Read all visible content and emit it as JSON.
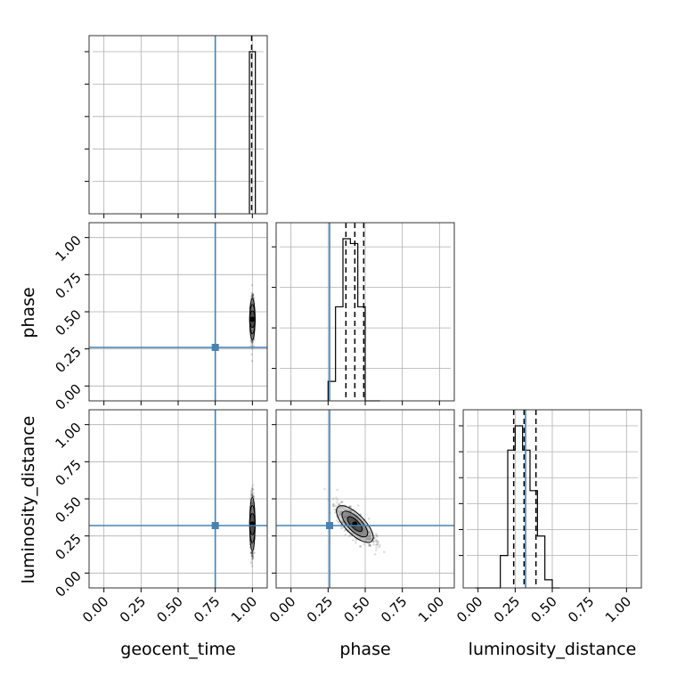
{
  "chart_data": {
    "type": "corner",
    "parameters": [
      "geocent_time",
      "phase",
      "luminosity_distance"
    ],
    "axis_range": [
      -0.1,
      1.1
    ],
    "ticks": [
      0.0,
      0.25,
      0.5,
      0.75,
      1.0
    ],
    "tick_labels": [
      "0.00",
      "0.25",
      "0.50",
      "0.75",
      "1.00"
    ],
    "axis_labels": {
      "geocent_time": "geocent_time",
      "phase": "phase",
      "luminosity_distance": "luminosity_distance"
    },
    "truths": {
      "geocent_time": 0.75,
      "phase": 0.26,
      "luminosity_distance": 0.32
    },
    "truth_color": "#4682b4",
    "grid": true,
    "histograms": {
      "geocent_time": {
        "bins": [
          [
            0.98,
            1.02
          ]
        ],
        "counts": [
          1.0
        ],
        "quantiles": [
          0.995
        ],
        "yticks": [
          0.2,
          0.4,
          0.6,
          0.8,
          1.0
        ]
      },
      "phase": {
        "bins": [
          [
            0.25,
            0.3
          ],
          [
            0.3,
            0.35
          ],
          [
            0.35,
            0.4
          ],
          [
            0.4,
            0.45
          ],
          [
            0.45,
            0.5
          ],
          [
            0.5,
            0.55
          ],
          [
            0.55,
            0.6
          ]
        ],
        "counts": [
          0.12,
          0.58,
          1.0,
          0.97,
          0.58,
          0.0,
          0.0
        ],
        "quantiles": [
          0.37,
          0.43,
          0.49
        ],
        "yticks": [
          0.2,
          0.45,
          0.7,
          0.95
        ]
      },
      "luminosity_distance": {
        "bins": [
          [
            0.15,
            0.2
          ],
          [
            0.2,
            0.25
          ],
          [
            0.25,
            0.3
          ],
          [
            0.3,
            0.35
          ],
          [
            0.35,
            0.4
          ],
          [
            0.4,
            0.45
          ],
          [
            0.45,
            0.5
          ],
          [
            0.5,
            0.55
          ]
        ],
        "counts": [
          0.2,
          0.85,
          1.0,
          0.85,
          0.6,
          0.32,
          0.05,
          0.0
        ],
        "quantiles": [
          0.24,
          0.31,
          0.39
        ],
        "yticks": [
          0.2,
          0.36,
          0.52,
          0.68,
          0.84,
          1.0
        ]
      }
    },
    "scatter_2d": [
      {
        "x": "geocent_time",
        "y": "phase",
        "center": [
          1.0,
          0.45
        ],
        "spread": [
          0.005,
          0.07
        ]
      },
      {
        "x": "geocent_time",
        "y": "luminosity_distance",
        "center": [
          1.0,
          0.33
        ],
        "spread": [
          0.005,
          0.09
        ]
      },
      {
        "x": "phase",
        "y": "luminosity_distance",
        "center": [
          0.43,
          0.33
        ],
        "spread": [
          0.06,
          0.06
        ],
        "correlation": -0.75
      }
    ]
  }
}
